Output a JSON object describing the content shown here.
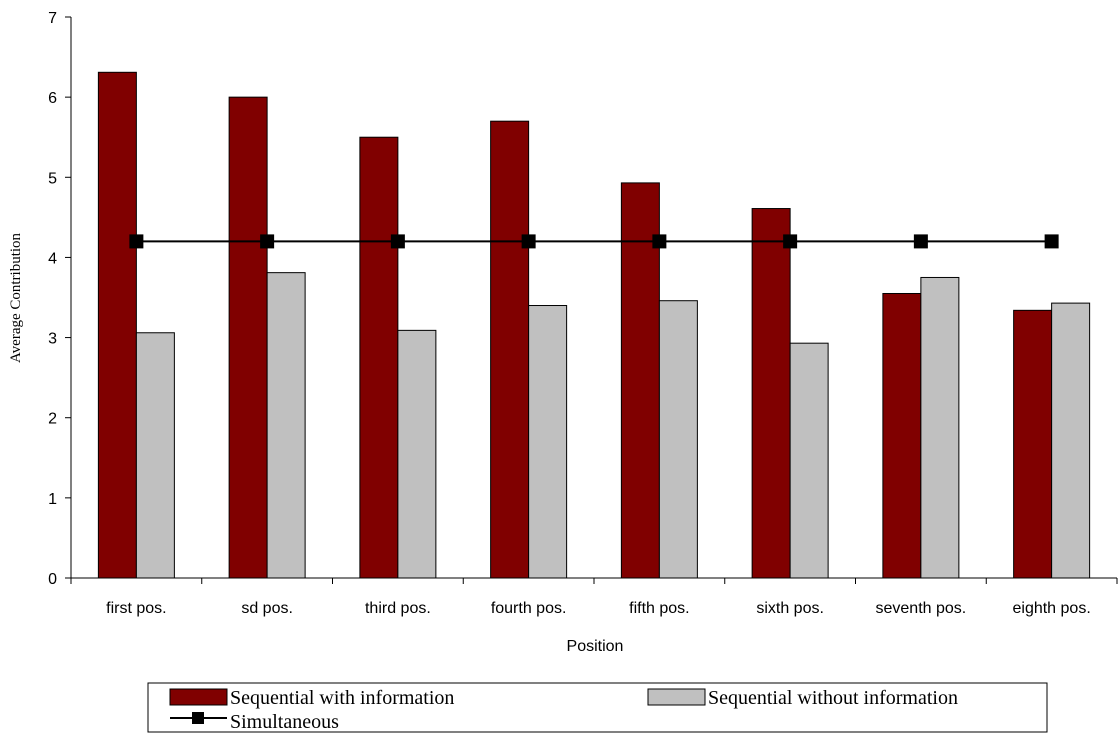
{
  "chart_data": {
    "type": "bar",
    "title": "",
    "xlabel": "Position",
    "ylabel": "Average Contribution",
    "ylim": [
      0,
      7
    ],
    "yticks": [
      "0",
      "1",
      "2",
      "3",
      "4",
      "5",
      "6",
      "7"
    ],
    "grid": false,
    "legend_position": "bottom",
    "categories": [
      "first pos.",
      "sd pos.",
      "third pos.",
      "fourth pos.",
      "fifth pos.",
      "sixth pos.",
      "seventh pos.",
      "eighth pos."
    ],
    "series": [
      {
        "name": "Sequential with  information",
        "kind": "bar",
        "color": "#800000",
        "values": [
          6.31,
          6.0,
          5.5,
          5.7,
          4.93,
          4.61,
          3.55,
          3.34
        ]
      },
      {
        "name": "Sequential without information",
        "kind": "bar",
        "color": "#c0c0c0",
        "values": [
          3.06,
          3.81,
          3.09,
          3.4,
          3.46,
          2.93,
          3.75,
          3.43
        ]
      },
      {
        "name": "Simultaneous",
        "kind": "line",
        "color": "#000000",
        "values": [
          4.2,
          4.2,
          4.2,
          4.2,
          4.2,
          4.2,
          4.2,
          4.2
        ]
      }
    ]
  }
}
